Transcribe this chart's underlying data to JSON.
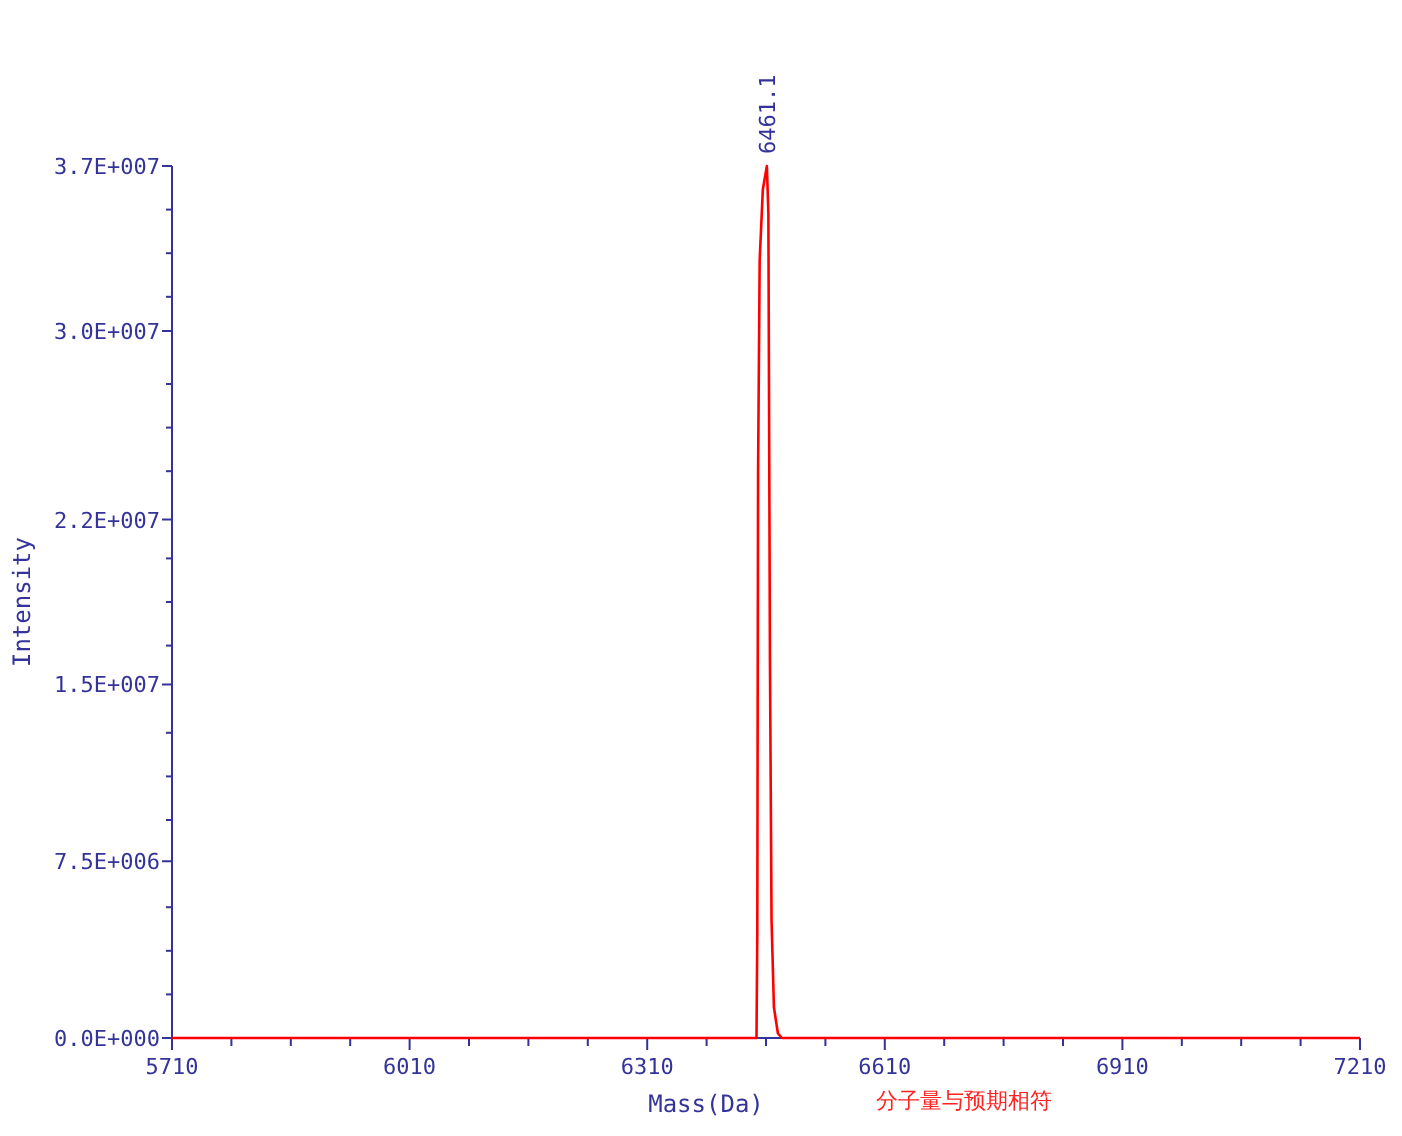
{
  "chart_data": {
    "type": "line",
    "xlabel": "Mass(Da)",
    "ylabel": "Intensity",
    "annotations": [
      {
        "text": "6461.1",
        "x": 6461.1,
        "y": 37000000
      },
      "分子量与预期相符"
    ],
    "xlim": [
      5710,
      7210
    ],
    "xticks": [
      5710,
      {
        "value": 5785,
        "label": null
      },
      {
        "value": 5860,
        "label": null
      },
      {
        "value": 5935,
        "label": null
      },
      6010,
      {
        "value": 6085,
        "label": null
      },
      {
        "value": 6160,
        "label": null
      },
      {
        "value": 6235,
        "label": null
      },
      6310,
      {
        "value": 6385,
        "label": null
      },
      {
        "value": 6460,
        "label": null
      },
      {
        "value": 6535,
        "label": null
      },
      6610,
      {
        "value": 6685,
        "label": null
      },
      {
        "value": 6760,
        "label": null
      },
      {
        "value": 6835,
        "label": null
      },
      6910,
      {
        "value": 6985,
        "label": null
      },
      {
        "value": 7060,
        "label": null
      },
      {
        "value": 7135,
        "label": null
      },
      7210
    ],
    "ylim": [
      0,
      37000000
    ],
    "yticks": [
      {
        "value": 0,
        "label": "0.0E+000"
      },
      {
        "value": 1850000,
        "label": null
      },
      {
        "value": 3700000,
        "label": null
      },
      {
        "value": 5550000,
        "label": null
      },
      {
        "value": 7500000,
        "label": "7.5E+006"
      },
      {
        "value": 9250000,
        "label": null
      },
      {
        "value": 11100000,
        "label": null
      },
      {
        "value": 12950000,
        "label": null
      },
      {
        "value": 15000000,
        "label": "1.5E+007"
      },
      {
        "value": 16650000,
        "label": null
      },
      {
        "value": 18500000,
        "label": null
      },
      {
        "value": 20350000,
        "label": null
      },
      {
        "value": 22000000,
        "label": "2.2E+007"
      },
      {
        "value": 24050000,
        "label": null
      },
      {
        "value": 25900000,
        "label": null
      },
      {
        "value": 27750000,
        "label": null
      },
      {
        "value": 30000000,
        "label": "3.0E+007"
      },
      {
        "value": 31450000,
        "label": null
      },
      {
        "value": 33300000,
        "label": null
      },
      {
        "value": 35150000,
        "label": null
      },
      {
        "value": 37000000,
        "label": "3.7E+007"
      }
    ],
    "grid": false,
    "marker": "none",
    "line_style": "solid",
    "series": [
      {
        "color": "#ff0000",
        "x": [
          5710,
          6448,
          6449,
          6450,
          6452,
          6456,
          6461.1,
          6463,
          6465,
          6467,
          6470,
          6475,
          6480,
          7210
        ],
        "values": [
          0,
          0,
          4400000,
          24000000,
          33000000,
          36000000,
          37000000,
          35000000,
          16000000,
          5000000,
          1300000,
          200000,
          0,
          0
        ]
      }
    ]
  }
}
